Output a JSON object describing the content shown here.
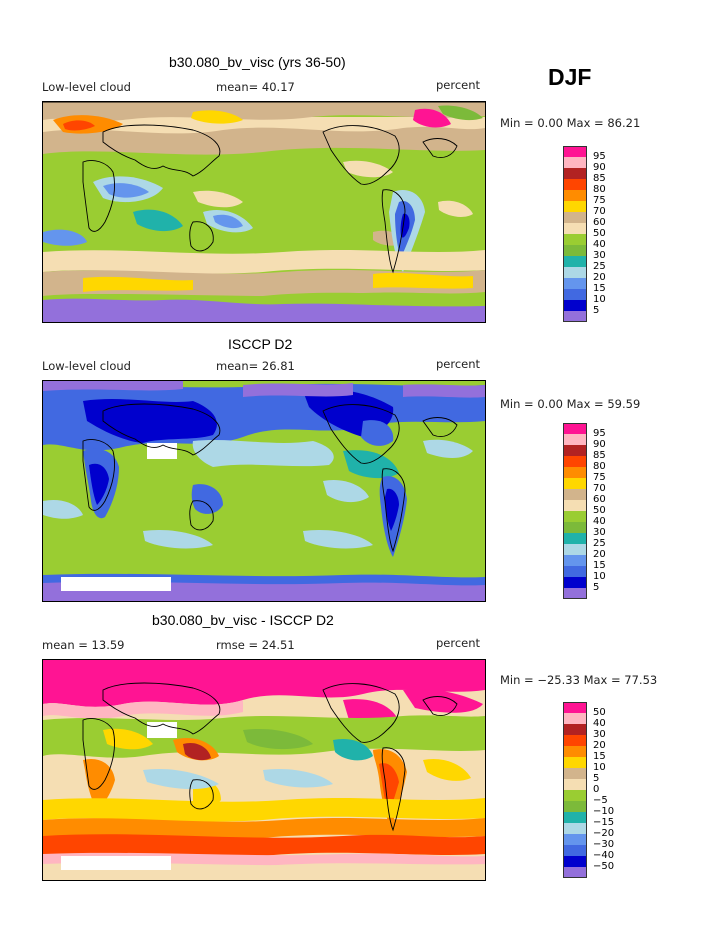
{
  "season": "DJF",
  "panels": [
    {
      "title": "b30.080_bv_visc (yrs 36-50)",
      "left_label": "Low-level cloud",
      "mid_label": "mean=  40.17",
      "units": "percent",
      "minmax": "Min =   0.00 Max =  86.21",
      "colorbar": {
        "labels": [
          "95",
          "90",
          "85",
          "80",
          "75",
          "70",
          "60",
          "50",
          "40",
          "30",
          "25",
          "20",
          "15",
          "10",
          "5"
        ],
        "colors": [
          "#ff1493",
          "#ffb6c1",
          "#b22222",
          "#ff4500",
          "#ff8c00",
          "#ffd700",
          "#d2b48c",
          "#f5deb3",
          "#9acd32",
          "#7cba3a",
          "#20b2aa",
          "#add8e6",
          "#6495ed",
          "#4169e1",
          "#0000cd",
          "#9370db"
        ]
      }
    },
    {
      "title": "ISCCP D2",
      "left_label": "Low-level cloud",
      "mid_label": "mean=  26.81",
      "units": "percent",
      "minmax": "Min =   0.00 Max =  59.59",
      "colorbar": {
        "labels": [
          "95",
          "90",
          "85",
          "80",
          "75",
          "70",
          "60",
          "50",
          "40",
          "30",
          "25",
          "20",
          "15",
          "10",
          "5"
        ],
        "colors": [
          "#ff1493",
          "#ffb6c1",
          "#b22222",
          "#ff4500",
          "#ff8c00",
          "#ffd700",
          "#d2b48c",
          "#f5deb3",
          "#9acd32",
          "#7cba3a",
          "#20b2aa",
          "#add8e6",
          "#6495ed",
          "#4169e1",
          "#0000cd",
          "#9370db"
        ]
      }
    },
    {
      "title": "b30.080_bv_visc - ISCCP D2",
      "left_label": "mean =  13.59",
      "mid_label": "rmse =  24.51",
      "units": "percent",
      "minmax": "Min = −25.33 Max =  77.53",
      "colorbar": {
        "labels": [
          "50",
          "40",
          "30",
          "20",
          "15",
          "10",
          "5",
          "0",
          "−5",
          "−10",
          "−15",
          "−20",
          "−30",
          "−40",
          "−50"
        ],
        "colors": [
          "#ff1493",
          "#ffb6c1",
          "#b22222",
          "#ff4500",
          "#ff8c00",
          "#ffd700",
          "#d2b48c",
          "#f5deb3",
          "#9acd32",
          "#7cba3a",
          "#20b2aa",
          "#add8e6",
          "#6495ed",
          "#4169e1",
          "#0000cd",
          "#9370db"
        ]
      }
    }
  ]
}
